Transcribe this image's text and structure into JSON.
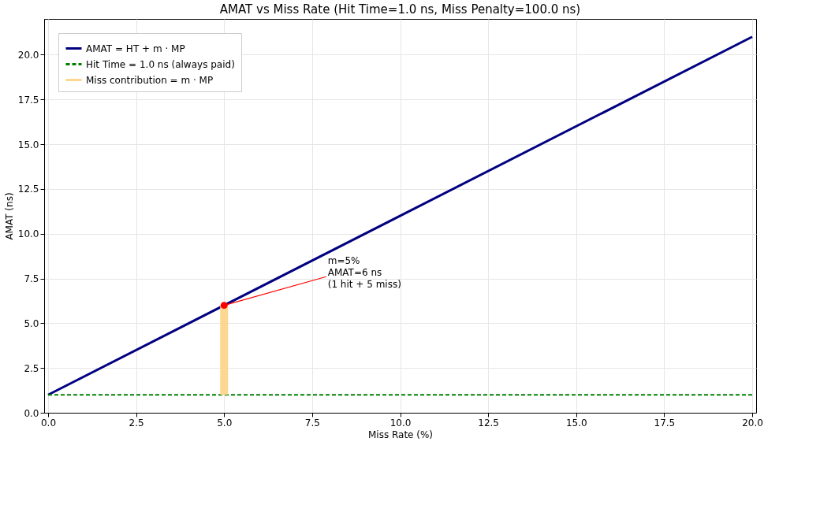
{
  "chart_data": {
    "type": "line",
    "title": "AMAT vs Miss Rate  (Hit Time=1.0 ns, Miss Penalty=100.0 ns)",
    "xlabel": "Miss Rate (%)",
    "ylabel": "AMAT (ns)",
    "series": [
      {
        "name": "AMAT  = HT + m · MP",
        "color": "#000080",
        "x": [
          0,
          20
        ],
        "values": [
          1,
          21
        ],
        "line_style": "solid"
      },
      {
        "name": "Hit Time = 1.0 ns (always paid)",
        "color": "#008000",
        "x": [
          0,
          20
        ],
        "values": [
          1,
          1
        ],
        "line_style": "dashed"
      },
      {
        "name": "Miss contribution  = m · MP",
        "type": "bar",
        "color": "#fdd78f",
        "x": [
          5
        ],
        "values": [
          5
        ],
        "base": [
          1
        ]
      },
      {
        "type": "scatter",
        "color": "#ff0000",
        "x": [
          5
        ],
        "values": [
          6
        ],
        "marker": "circle"
      }
    ],
    "annotations": [
      {
        "text": "m=5%\nAMAT=6 ns\n(1 hit + 5 miss)",
        "x": 5,
        "y": 6
      }
    ],
    "xlim": [
      0,
      20
    ],
    "ylim": [
      0,
      22
    ],
    "xticks": [
      {
        "value": 0,
        "label": "0.0"
      },
      2.5,
      {
        "value": 5,
        "label": "5.0"
      },
      7.5,
      {
        "value": 10,
        "label": "10.0"
      },
      12.5,
      {
        "value": 15,
        "label": "15.0"
      },
      17.5,
      {
        "value": 20,
        "label": "20.0"
      }
    ],
    "yticks": [
      {
        "value": 0,
        "label": "0.0"
      },
      2.5,
      {
        "value": 5,
        "label": "5.0"
      },
      7.5,
      {
        "value": 10,
        "label": "10.0"
      },
      12.5,
      {
        "value": 15,
        "label": "15.0"
      },
      17.5,
      {
        "value": 20,
        "label": "20.0"
      }
    ],
    "grid": true,
    "legend": "top left"
  }
}
